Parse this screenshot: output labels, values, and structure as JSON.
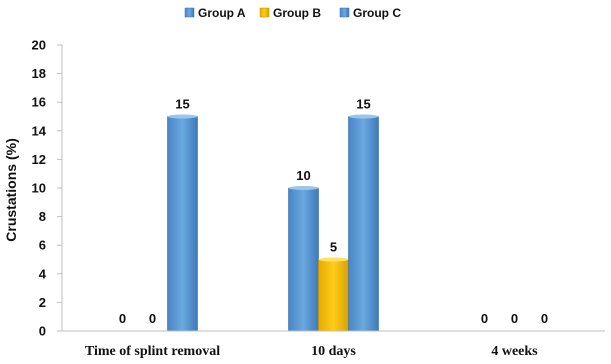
{
  "chart_data": {
    "type": "bar",
    "title": "",
    "xlabel": "",
    "ylabel": "Crustations (%)",
    "ylim": [
      0,
      20
    ],
    "yticks": [
      0,
      2,
      4,
      6,
      8,
      10,
      12,
      14,
      16,
      18,
      20
    ],
    "categories": [
      "Time of splint removal",
      "10 days",
      "4 weeks"
    ],
    "series": [
      {
        "name": "Group A",
        "values": [
          0,
          10,
          0
        ],
        "color": "#5b9bd5"
      },
      {
        "name": "Group B",
        "values": [
          0,
          5,
          0
        ],
        "color": "#ffc000"
      },
      {
        "name": "Group C",
        "values": [
          15,
          15,
          0
        ],
        "color": "#5b9bd5"
      }
    ],
    "data_labels": true,
    "legend_position": "top-center",
    "grid": false
  }
}
